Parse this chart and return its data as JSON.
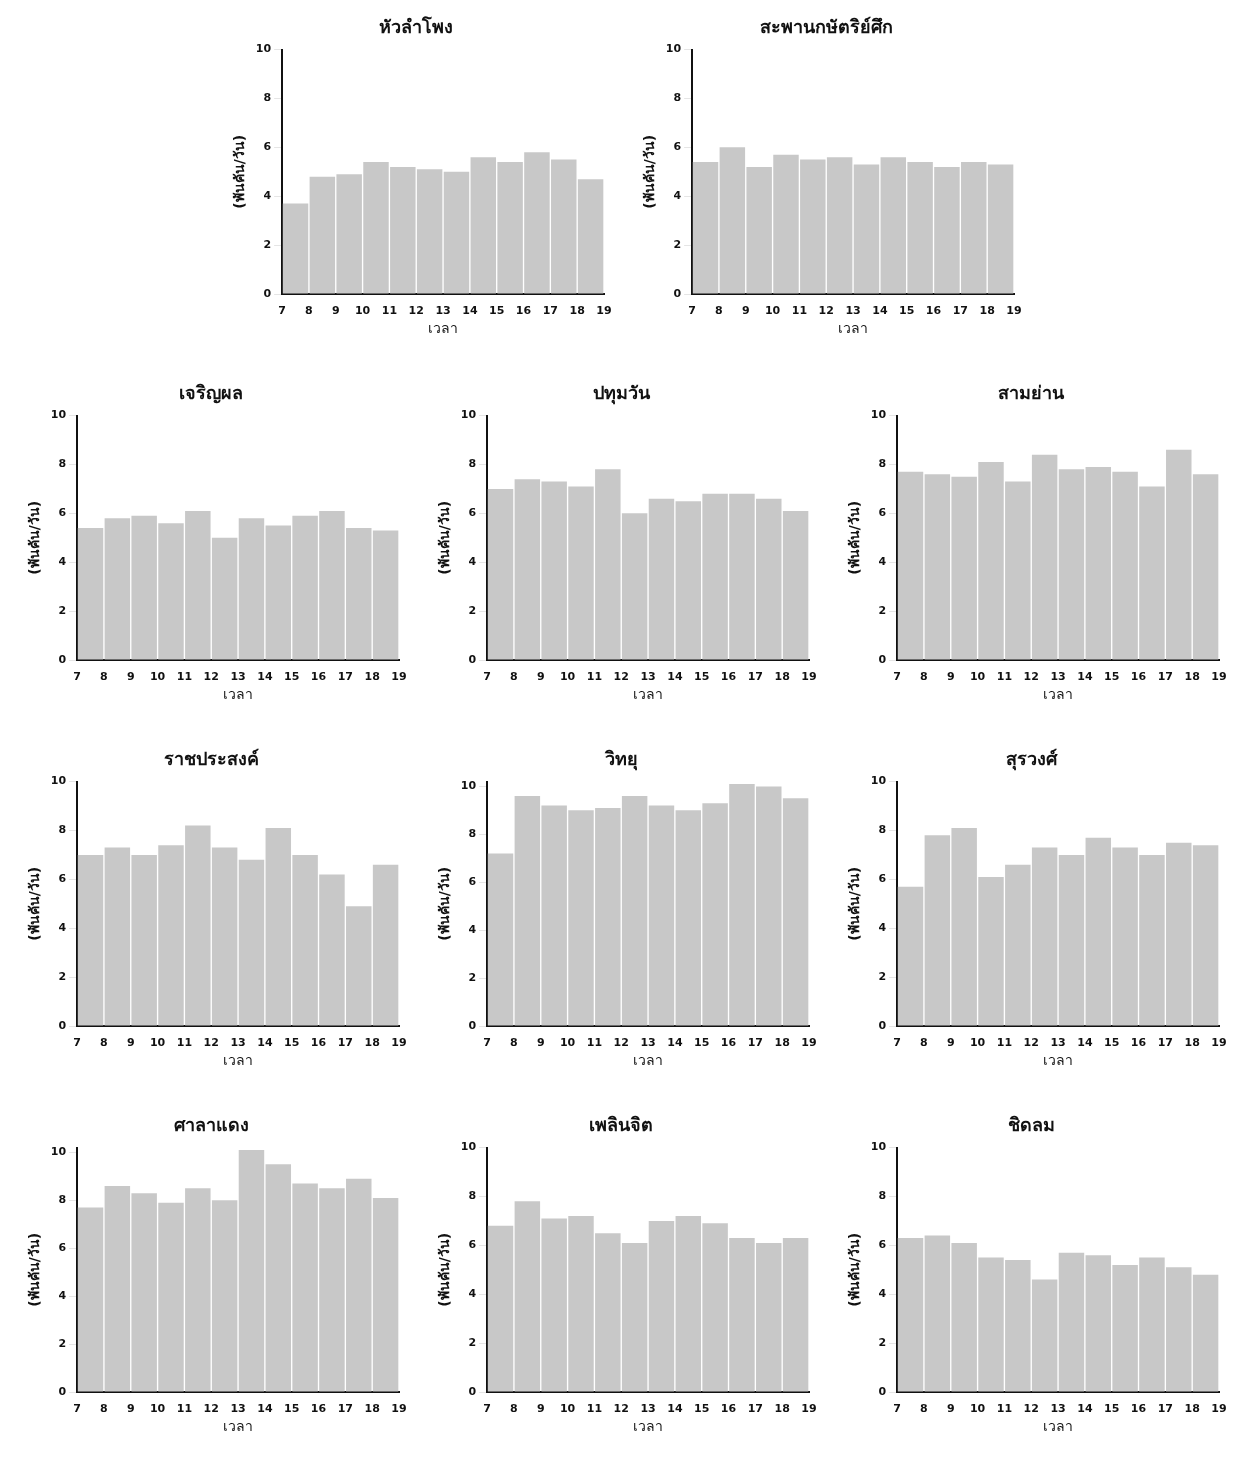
{
  "chart_data": [
    {
      "type": "histogram",
      "title": "หัวลำโพง",
      "xlabel": "เวลา",
      "ylabel": "(พันคัน/วัน)",
      "bins": [
        7,
        8,
        9,
        10,
        11,
        12,
        13,
        14,
        15,
        16,
        17,
        18,
        19
      ],
      "values": [
        3.7,
        4.8,
        4.9,
        5.4,
        5.2,
        5.1,
        5.0,
        5.6,
        5.4,
        5.8,
        5.5,
        4.7
      ],
      "color": "#c8c8c8",
      "xlim": [
        7,
        19
      ],
      "xticks": [
        7,
        8,
        9,
        10,
        11,
        12,
        13,
        14,
        15,
        16,
        17,
        18,
        19
      ],
      "ylim": [
        0,
        10
      ],
      "yticks": [
        0,
        2,
        4,
        6,
        8,
        10
      ],
      "grid": false,
      "legend": false
    },
    {
      "type": "histogram",
      "title": "สะพานกษัตริย์ศึก",
      "xlabel": "เวลา",
      "ylabel": "(พันคัน/วัน)",
      "bins": [
        7,
        8,
        9,
        10,
        11,
        12,
        13,
        14,
        15,
        16,
        17,
        18,
        19
      ],
      "values": [
        5.4,
        6.0,
        5.2,
        5.7,
        5.5,
        5.6,
        5.3,
        5.6,
        5.4,
        5.2,
        5.4,
        5.3
      ],
      "color": "#c8c8c8",
      "xlim": [
        7,
        19
      ],
      "xticks": [
        7,
        8,
        9,
        10,
        11,
        12,
        13,
        14,
        15,
        16,
        17,
        18,
        19
      ],
      "ylim": [
        0,
        10
      ],
      "yticks": [
        0,
        2,
        4,
        6,
        8,
        10
      ],
      "grid": false,
      "legend": false
    },
    {
      "type": "histogram",
      "title": "เจริญผล",
      "xlabel": "เวลา",
      "ylabel": "(พันคัน/วัน)",
      "bins": [
        7,
        8,
        9,
        10,
        11,
        12,
        13,
        14,
        15,
        16,
        17,
        18,
        19
      ],
      "values": [
        5.4,
        5.8,
        5.9,
        5.6,
        6.1,
        5.0,
        5.8,
        5.5,
        5.9,
        6.1,
        5.4,
        5.3
      ],
      "color": "#c8c8c8",
      "xlim": [
        7,
        19
      ],
      "xticks": [
        7,
        8,
        9,
        10,
        11,
        12,
        13,
        14,
        15,
        16,
        17,
        18,
        19
      ],
      "ylim": [
        0,
        10
      ],
      "yticks": [
        0,
        2,
        4,
        6,
        8,
        10
      ],
      "grid": false,
      "legend": false
    },
    {
      "type": "histogram",
      "title": "ปทุมวัน",
      "xlabel": "เวลา",
      "ylabel": "(พันคัน/วัน)",
      "bins": [
        7,
        8,
        9,
        10,
        11,
        12,
        13,
        14,
        15,
        16,
        17,
        18,
        19
      ],
      "values": [
        7.0,
        7.4,
        7.3,
        7.1,
        7.8,
        6.0,
        6.6,
        6.5,
        6.8,
        6.8,
        6.6,
        6.1
      ],
      "color": "#c8c8c8",
      "xlim": [
        7,
        19
      ],
      "xticks": [
        7,
        8,
        9,
        10,
        11,
        12,
        13,
        14,
        15,
        16,
        17,
        18,
        19
      ],
      "ylim": [
        0,
        10
      ],
      "yticks": [
        0,
        2,
        4,
        6,
        8,
        10
      ],
      "grid": false,
      "legend": false
    },
    {
      "type": "histogram",
      "title": "สามย่าน",
      "xlabel": "เวลา",
      "ylabel": "(พันคัน/วัน)",
      "bins": [
        7,
        8,
        9,
        10,
        11,
        12,
        13,
        14,
        15,
        16,
        17,
        18,
        19
      ],
      "values": [
        7.7,
        7.6,
        7.5,
        8.1,
        7.3,
        8.4,
        7.8,
        7.9,
        7.7,
        7.1,
        8.6,
        7.6
      ],
      "color": "#c8c8c8",
      "xlim": [
        7,
        19
      ],
      "xticks": [
        7,
        8,
        9,
        10,
        11,
        12,
        13,
        14,
        15,
        16,
        17,
        18,
        19
      ],
      "ylim": [
        0,
        10
      ],
      "yticks": [
        0,
        2,
        4,
        6,
        8,
        10
      ],
      "grid": false,
      "legend": false
    },
    {
      "type": "histogram",
      "title": "ราชประสงค์",
      "xlabel": "เวลา",
      "ylabel": "(พันคัน/วัน)",
      "bins": [
        7,
        8,
        9,
        10,
        11,
        12,
        13,
        14,
        15,
        16,
        17,
        18,
        19
      ],
      "values": [
        7.0,
        7.3,
        7.0,
        7.4,
        8.2,
        7.3,
        6.8,
        8.1,
        7.0,
        6.2,
        4.9,
        6.6
      ],
      "color": "#c8c8c8",
      "xlim": [
        7,
        19
      ],
      "xticks": [
        7,
        8,
        9,
        10,
        11,
        12,
        13,
        14,
        15,
        16,
        17,
        18,
        19
      ],
      "ylim": [
        0,
        10
      ],
      "yticks": [
        0,
        2,
        4,
        6,
        8,
        10
      ],
      "grid": false,
      "legend": false
    },
    {
      "type": "histogram",
      "title": "วิทยุ",
      "xlabel": "เวลา",
      "ylabel": "(พันคัน/วัน)",
      "bins": [
        7,
        8,
        9,
        10,
        11,
        12,
        13,
        14,
        15,
        16,
        17,
        18,
        19
      ],
      "values": [
        7.2,
        9.6,
        9.2,
        9.0,
        9.1,
        9.6,
        9.2,
        9.0,
        9.3,
        10.1,
        10.0,
        9.5
      ],
      "color": "#c8c8c8",
      "xlim": [
        7,
        19
      ],
      "xticks": [
        7,
        8,
        9,
        10,
        11,
        12,
        13,
        14,
        15,
        16,
        17,
        18,
        19
      ],
      "ylim": [
        0,
        10.2
      ],
      "yticks": [
        0,
        2,
        4,
        6,
        8,
        10
      ],
      "grid": false,
      "legend": false
    },
    {
      "type": "histogram",
      "title": "สุรวงศ์",
      "xlabel": "เวลา",
      "ylabel": "(พันคัน/วัน)",
      "bins": [
        7,
        8,
        9,
        10,
        11,
        12,
        13,
        14,
        15,
        16,
        17,
        18,
        19
      ],
      "values": [
        5.7,
        7.8,
        8.1,
        6.1,
        6.6,
        7.3,
        7.0,
        7.7,
        7.3,
        7.0,
        7.5,
        7.4
      ],
      "color": "#c8c8c8",
      "xlim": [
        7,
        19
      ],
      "xticks": [
        7,
        8,
        9,
        10,
        11,
        12,
        13,
        14,
        15,
        16,
        17,
        18,
        19
      ],
      "ylim": [
        0,
        10
      ],
      "yticks": [
        0,
        2,
        4,
        6,
        8,
        10
      ],
      "grid": false,
      "legend": false
    },
    {
      "type": "histogram",
      "title": "ศาลาแดง",
      "xlabel": "เวลา",
      "ylabel": "(พันคัน/วัน)",
      "bins": [
        7,
        8,
        9,
        10,
        11,
        12,
        13,
        14,
        15,
        16,
        17,
        18,
        19
      ],
      "values": [
        7.7,
        8.6,
        8.3,
        7.9,
        8.5,
        8.0,
        10.1,
        9.5,
        8.7,
        8.5,
        8.9,
        8.1
      ],
      "color": "#c8c8c8",
      "xlim": [
        7,
        19
      ],
      "xticks": [
        7,
        8,
        9,
        10,
        11,
        12,
        13,
        14,
        15,
        16,
        17,
        18,
        19
      ],
      "ylim": [
        0,
        10.2
      ],
      "yticks": [
        0,
        2,
        4,
        6,
        8,
        10
      ],
      "grid": false,
      "legend": false
    },
    {
      "type": "histogram",
      "title": "เพลินจิต",
      "xlabel": "เวลา",
      "ylabel": "(พันคัน/วัน)",
      "bins": [
        7,
        8,
        9,
        10,
        11,
        12,
        13,
        14,
        15,
        16,
        17,
        18,
        19
      ],
      "values": [
        6.8,
        7.8,
        7.1,
        7.2,
        6.5,
        6.1,
        7.0,
        7.2,
        6.9,
        6.3,
        6.1,
        6.3
      ],
      "color": "#c8c8c8",
      "xlim": [
        7,
        19
      ],
      "xticks": [
        7,
        8,
        9,
        10,
        11,
        12,
        13,
        14,
        15,
        16,
        17,
        18,
        19
      ],
      "ylim": [
        0,
        10
      ],
      "yticks": [
        0,
        2,
        4,
        6,
        8,
        10
      ],
      "grid": false,
      "legend": false
    },
    {
      "type": "histogram",
      "title": "ชิดลม",
      "xlabel": "เวลา",
      "ylabel": "(พันคัน/วัน)",
      "bins": [
        7,
        8,
        9,
        10,
        11,
        12,
        13,
        14,
        15,
        16,
        17,
        18,
        19
      ],
      "values": [
        6.3,
        6.4,
        6.1,
        5.5,
        5.4,
        4.6,
        5.7,
        5.6,
        5.2,
        5.5,
        5.1,
        4.8
      ],
      "color": "#c8c8c8",
      "xlim": [
        7,
        19
      ],
      "xticks": [
        7,
        8,
        9,
        10,
        11,
        12,
        13,
        14,
        15,
        16,
        17,
        18,
        19
      ],
      "ylim": [
        0,
        10
      ],
      "yticks": [
        0,
        2,
        4,
        6,
        8,
        10
      ],
      "grid": false,
      "legend": false
    }
  ]
}
